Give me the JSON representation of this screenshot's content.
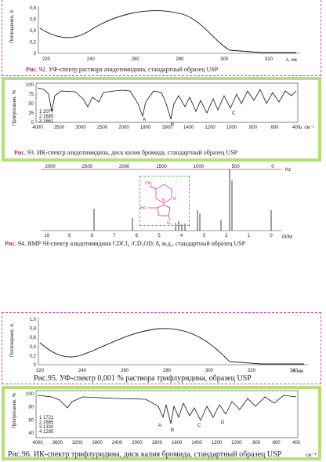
{
  "figures": {
    "uv1": {
      "ylabel": "Поглощение, А",
      "yticks": [
        "0,8",
        "0,6",
        "0,4",
        "0,2",
        "0"
      ],
      "xticks": [
        "220",
        "240",
        "260",
        "280",
        "300",
        "320"
      ],
      "xunit": "λ, нм",
      "caption_num": "Рис.",
      "caption_text": "92.  УФ-спектр раствора азидотимидина, стандартный образец USP"
    },
    "ir1": {
      "ylabel": "Пропускание, %",
      "yticks": [
        "100",
        "75",
        "50",
        "25",
        "0"
      ],
      "xticks": [
        "4000",
        "3500",
        "3000",
        "2500",
        "2000",
        "1800",
        "1600",
        "1400",
        "1200",
        "1000",
        "800",
        "600",
        "400"
      ],
      "xunit": "ν, см⁻¹",
      "peak_table": [
        "1 2077",
        "2 1685",
        "3 1661"
      ],
      "peak_marks": [
        "A",
        "B",
        "C"
      ],
      "caption_num": "Рис.",
      "caption_text": "93.  ИК-спектр  азидотимидина, диск калия бромида, стандартный образец USP"
    },
    "nmr": {
      "top_ticks": [
        "2000",
        "2500",
        "2000",
        "1500",
        "1000",
        "500",
        "0"
      ],
      "top_unit": "Hz",
      "bottom_ticks": [
        "10",
        "9",
        "8",
        "7",
        "6",
        "5",
        "4",
        "3",
        "2",
        "1",
        "0"
      ],
      "bottom_unit": "PPM",
      "mol_labels": [
        "CH₃",
        "HO",
        "N₃",
        "O",
        "N"
      ],
      "caption_num": "Рис.",
      "caption_text": "94.  ЯМР ¹Н-спектр азидотимидина CDCl₃ /CD₃OD, δ, м.д., стандартный образец USP"
    },
    "uv2": {
      "ylabel": "Поглощение, А",
      "yticks": [
        "1,0",
        "0,8",
        "0,6",
        "0,4",
        "0,2",
        "0"
      ],
      "xticks": [
        "220",
        "240",
        "260",
        "280",
        "300",
        "320",
        "340"
      ],
      "xunit": "λ, нм",
      "caption_text": "Рис.95.  УФ-спектр 0,001 % раствора трифлуридина, образец USP"
    },
    "ir2": {
      "ylabel": "Пропускание, %",
      "yticks": [
        "100",
        "80",
        "60",
        "40"
      ],
      "xticks": [
        "4000",
        "3600",
        "3200",
        "2800",
        "2400",
        "2000",
        "1800",
        "1600",
        "1400",
        "1200",
        "1000",
        "800",
        "600",
        "400"
      ],
      "peak_table": [
        "1 1721",
        "2 1685",
        "3 1330",
        "4 1295"
      ],
      "peak_marks": [
        "A",
        "B",
        "C",
        "D"
      ],
      "caption_text": "Рис.96.  ИК-спектр трифлуридина, диск калия бромида, стандартный образец USP",
      "xunit": "см⁻¹"
    }
  },
  "colors": {
    "magenta_border": "#d44aa8",
    "green_border": "#b4e07a",
    "caption_accent": "#c0306a",
    "molecule": "#e0208c"
  }
}
